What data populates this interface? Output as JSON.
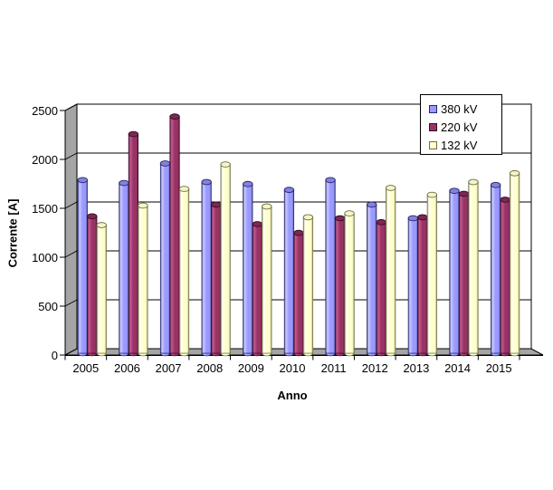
{
  "chart_data": {
    "type": "bar",
    "subtype": "3d-cylinder",
    "title": "",
    "xlabel": "Anno",
    "ylabel": "Corrente [A]",
    "ylim": [
      0,
      2500
    ],
    "ytick_step": 500,
    "yticks": [
      "0",
      "500",
      "1000",
      "1500",
      "2000",
      "2500"
    ],
    "grid": true,
    "legend_position": "top-right",
    "categories": [
      "2005",
      "2006",
      "2007",
      "2008",
      "2009",
      "2010",
      "2011",
      "2012",
      "2013",
      "2014",
      "2015"
    ],
    "series": [
      {
        "name": "380 kV",
        "color": "#9999FF",
        "top_color": "#8282DF",
        "edge_color": "#26266B",
        "highlight": "#C9C9FB",
        "shadow": "#50509A",
        "values": [
          1770,
          1740,
          1940,
          1750,
          1730,
          1670,
          1770,
          1520,
          1380,
          1660,
          1720
        ]
      },
      {
        "name": "220 kV",
        "color": "#993366",
        "top_color": "#7D2753",
        "edge_color": "#330D22",
        "highlight": "#C05C91",
        "shadow": "#5C1535",
        "values": [
          1400,
          2240,
          2420,
          1520,
          1320,
          1230,
          1380,
          1340,
          1390,
          1630,
          1570
        ]
      },
      {
        "name": "132 kV",
        "color": "#FFFFCC",
        "top_color": "#F5F5C9",
        "edge_color": "#6E6E45",
        "highlight": "#FFFFF4",
        "shadow": "#99996B",
        "values": [
          1310,
          1510,
          1680,
          1930,
          1500,
          1390,
          1430,
          1690,
          1620,
          1750,
          1840
        ]
      }
    ]
  },
  "frame": {
    "wall_color": "#A5A5A5",
    "plot_bg": "#FFFFFF",
    "line_color": "#000000",
    "background": "#FFFFFF"
  }
}
